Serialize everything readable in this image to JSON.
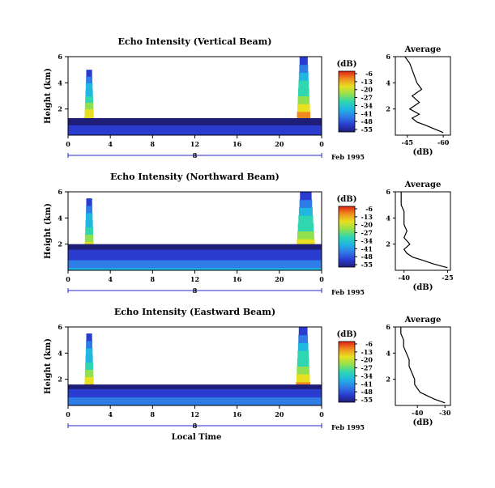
{
  "chart_data": [
    {
      "type": "heatmap",
      "title": "Echo Intensity (Vertical Beam)",
      "ylabel": "Height (km)",
      "x_ticks": [
        "0",
        "4",
        "8",
        "12",
        "16",
        "20",
        "0"
      ],
      "y_ticks": [
        "2",
        "4",
        "6"
      ],
      "xlim": [
        0,
        24
      ],
      "ylim": [
        0,
        6
      ],
      "date_label": "8",
      "date_suffix": "Feb 1995",
      "colorbar": {
        "label": "(dB)",
        "ticks": [
          "-6",
          "-13",
          "-20",
          "-27",
          "-34",
          "-41",
          "-48",
          "-55"
        ],
        "range": [
          -55,
          -6
        ]
      },
      "features": [
        {
          "time_start": 1.5,
          "time_end": 2.5,
          "height_top": 5.0,
          "peak_db": -10
        },
        {
          "time_start": 21.6,
          "time_end": 23.0,
          "height_top": 6.0,
          "peak_db": -6
        },
        {
          "time_start": 0,
          "time_end": 24,
          "height_top": 1.3,
          "peak_db": -45
        }
      ],
      "average_profile": {
        "title": "Average",
        "xlabel": "(dB)",
        "x_ticks": [
          "-45",
          "-60"
        ],
        "xlim": [
          -40,
          -63
        ],
        "y_ticks": [
          "2",
          "4",
          "6"
        ],
        "ylim": [
          0,
          6
        ],
        "height": [
          0.2,
          0.5,
          0.8,
          1.0,
          1.3,
          1.6,
          2.0,
          2.5,
          3.0,
          3.5,
          4.0,
          4.5,
          5.0,
          5.5,
          6.0
        ],
        "db": [
          -60,
          -56,
          -52,
          -49,
          -47,
          -50,
          -46,
          -50,
          -47,
          -51,
          -49,
          -48,
          -47,
          -46,
          -44
        ]
      }
    },
    {
      "type": "heatmap",
      "title": "Echo Intensity (Northward Beam)",
      "ylabel": "Height (km)",
      "x_ticks": [
        "0",
        "4",
        "8",
        "12",
        "16",
        "20",
        "0"
      ],
      "y_ticks": [
        "2",
        "4",
        "6"
      ],
      "xlim": [
        0,
        24
      ],
      "ylim": [
        0,
        6
      ],
      "date_label": "8",
      "date_suffix": "Feb 1995",
      "colorbar": {
        "label": "(dB)",
        "ticks": [
          "-6",
          "-13",
          "-20",
          "-27",
          "-34",
          "-41",
          "-48",
          "-55"
        ],
        "range": [
          -55,
          -6
        ]
      },
      "features": [
        {
          "time_start": 1.5,
          "time_end": 2.5,
          "height_top": 5.5,
          "peak_db": -8
        },
        {
          "time_start": 21.5,
          "time_end": 23.5,
          "height_top": 6.0,
          "peak_db": -6
        },
        {
          "time_start": 0,
          "time_end": 24,
          "height_top": 2.0,
          "peak_db": -38
        }
      ],
      "average_profile": {
        "title": "Average",
        "xlabel": "(dB)",
        "x_ticks": [
          "-40",
          "-25"
        ],
        "xlim": [
          -43,
          -24
        ],
        "y_ticks": [
          "2",
          "4",
          "6"
        ],
        "ylim": [
          0,
          6
        ],
        "height": [
          0.2,
          0.5,
          0.8,
          1.0,
          1.3,
          1.6,
          2.0,
          2.5,
          3.0,
          3.5,
          4.0,
          4.5,
          5.0,
          5.5,
          6.0
        ],
        "db": [
          -25,
          -30,
          -34,
          -37,
          -39,
          -40,
          -38,
          -40,
          -39,
          -40,
          -40,
          -40,
          -41,
          -41,
          -41
        ]
      }
    },
    {
      "type": "heatmap",
      "title": "Echo Intensity (Eastward Beam)",
      "ylabel": "Height (km)",
      "x_ticks": [
        "0",
        "4",
        "8",
        "12",
        "16",
        "20",
        "0"
      ],
      "y_ticks": [
        "2",
        "4",
        "6"
      ],
      "xlim": [
        0,
        24
      ],
      "ylim": [
        0,
        6
      ],
      "date_label": "8",
      "date_suffix": "Feb 1995",
      "xlabel": "Local Time",
      "colorbar": {
        "label": "(dB)",
        "ticks": [
          "-6",
          "-13",
          "-20",
          "-27",
          "-34",
          "-41",
          "-48",
          "-55"
        ],
        "range": [
          -55,
          -6
        ]
      },
      "features": [
        {
          "time_start": 1.5,
          "time_end": 2.5,
          "height_top": 5.5,
          "peak_db": -8
        },
        {
          "time_start": 21.5,
          "time_end": 23.0,
          "height_top": 6.0,
          "peak_db": -6
        },
        {
          "time_start": 0,
          "time_end": 24,
          "height_top": 1.6,
          "peak_db": -40
        }
      ],
      "average_profile": {
        "title": "Average",
        "xlabel": "(dB)",
        "x_ticks": [
          "-40",
          "-30"
        ],
        "xlim": [
          -48,
          -28
        ],
        "y_ticks": [
          "2",
          "4",
          "6"
        ],
        "ylim": [
          0,
          6
        ],
        "height": [
          0.2,
          0.5,
          0.8,
          1.0,
          1.3,
          1.6,
          2.0,
          2.5,
          3.0,
          3.5,
          4.0,
          4.5,
          5.0,
          5.5,
          6.0
        ],
        "db": [
          -30,
          -34,
          -37,
          -39,
          -40,
          -41,
          -41,
          -42,
          -43,
          -43,
          -44,
          -45,
          -45,
          -46,
          -46
        ]
      }
    }
  ],
  "colors": {
    "scale": [
      "#1e1e78",
      "#2a3cd0",
      "#2f7ce6",
      "#20b8e0",
      "#30d6b0",
      "#90e050",
      "#e8e020",
      "#f08a20",
      "#e02010"
    ],
    "axis": "#000000",
    "date_line": "#2a2acf"
  }
}
